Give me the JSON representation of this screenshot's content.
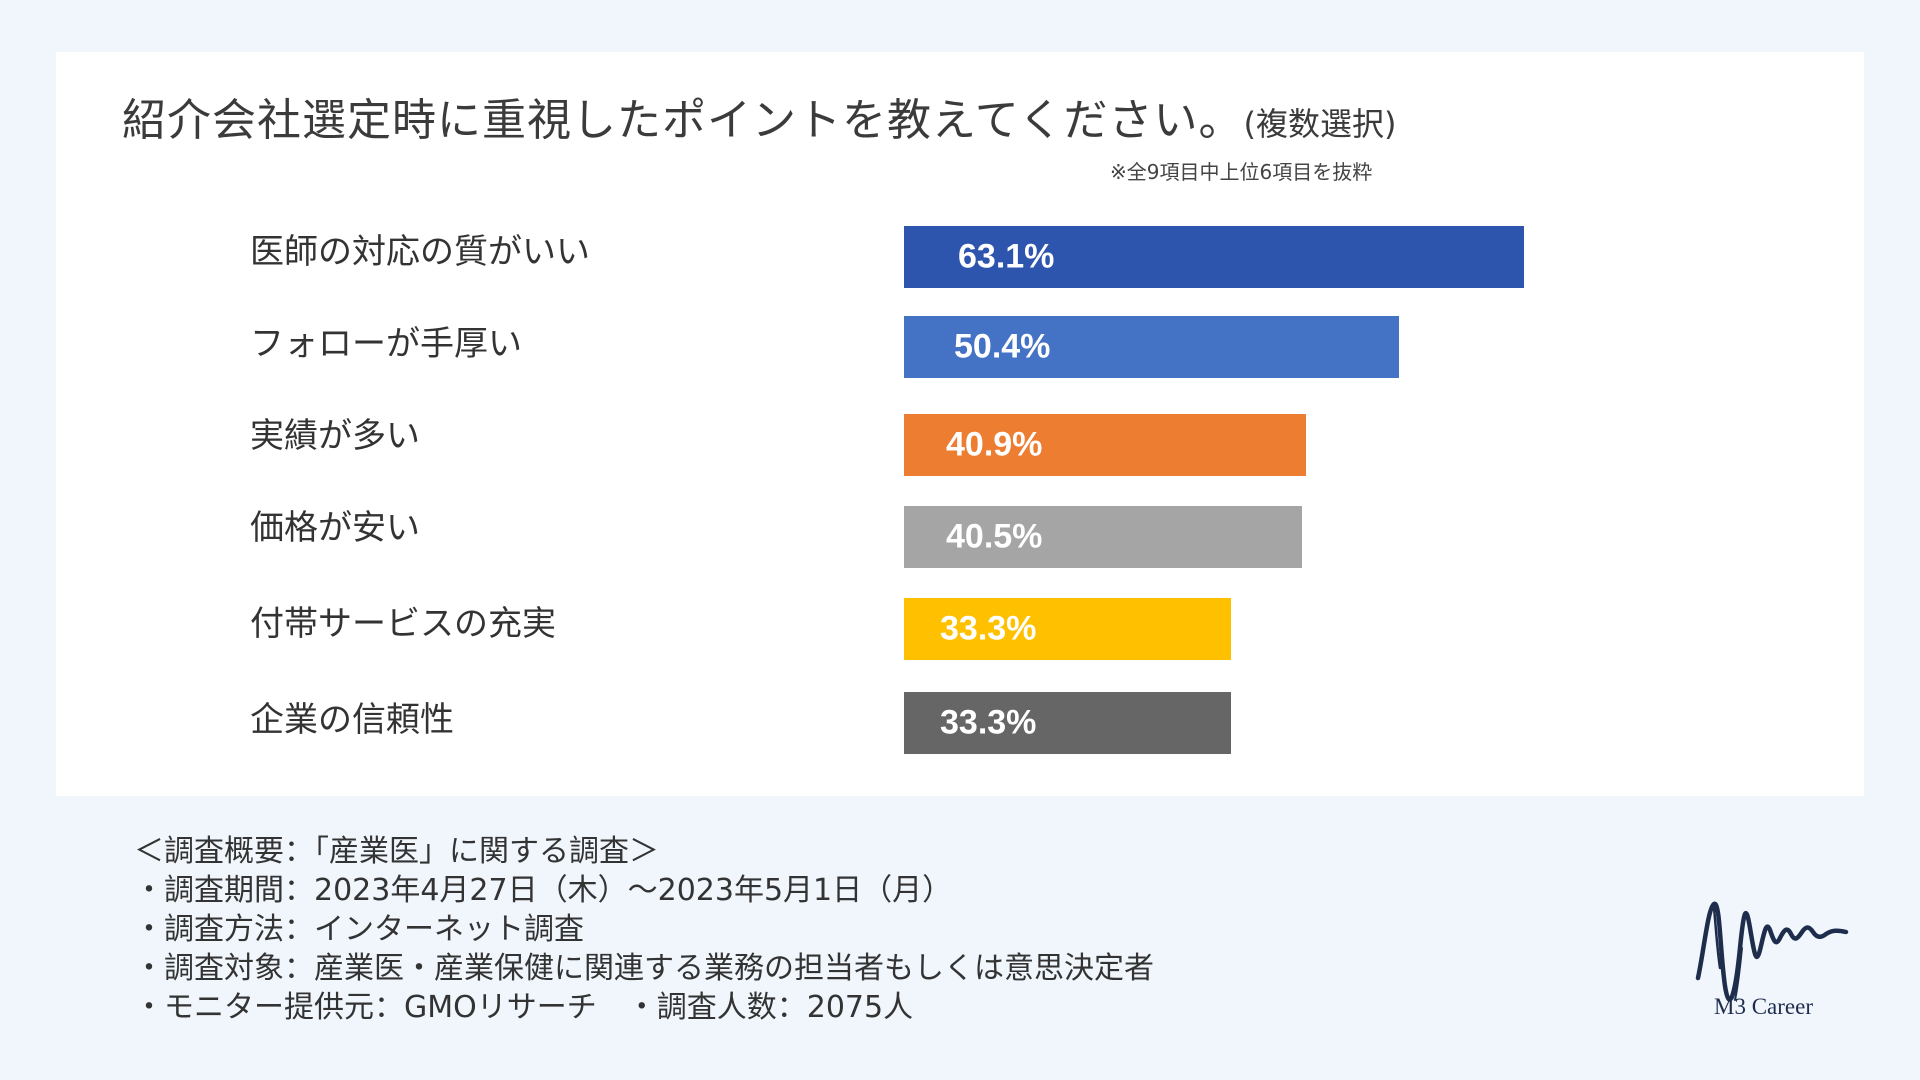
{
  "title_main": "紹介会社選定時に重視したポイントを教えてください。",
  "title_sub": "(複数選択)",
  "note": "※全9項目中上位6項目を抜粋",
  "chart_data": {
    "type": "bar",
    "orientation": "horizontal",
    "categories": [
      "医師の対応の質がいい",
      "フォローが手厚い",
      "実績が多い",
      "価格が安い",
      "付帯サービスの充実",
      "企業の信頼性"
    ],
    "values": [
      63.1,
      50.4,
      40.9,
      40.5,
      33.3,
      33.3
    ],
    "value_labels": [
      "63.1%",
      "50.4%",
      "40.9%",
      "40.5%",
      "33.3%",
      "33.3%"
    ],
    "bar_colors": [
      "#2d55ad",
      "#4472c4",
      "#ed7d31",
      "#a5a5a5",
      "#ffc000",
      "#666666"
    ],
    "unit": "%",
    "grid": false,
    "legend": "none",
    "axes_visible": false
  },
  "summary": [
    "＜調査概要：「産業医」に関する調査＞",
    "・調査期間：2023年4月27日（木）〜2023年5月1日（月）",
    "・調査方法：インターネット調査",
    "・調査対象：産業医・産業保健に関連する業務の担当者もしくは意思決定者",
    "・モニター提供元：GMOリサーチ　・調査人数：2075人"
  ],
  "logo_text": "M3 Career",
  "colors": {
    "page_background": "#f0f6fc",
    "card_background": "#ffffff",
    "logo": "#1f2d4d"
  }
}
